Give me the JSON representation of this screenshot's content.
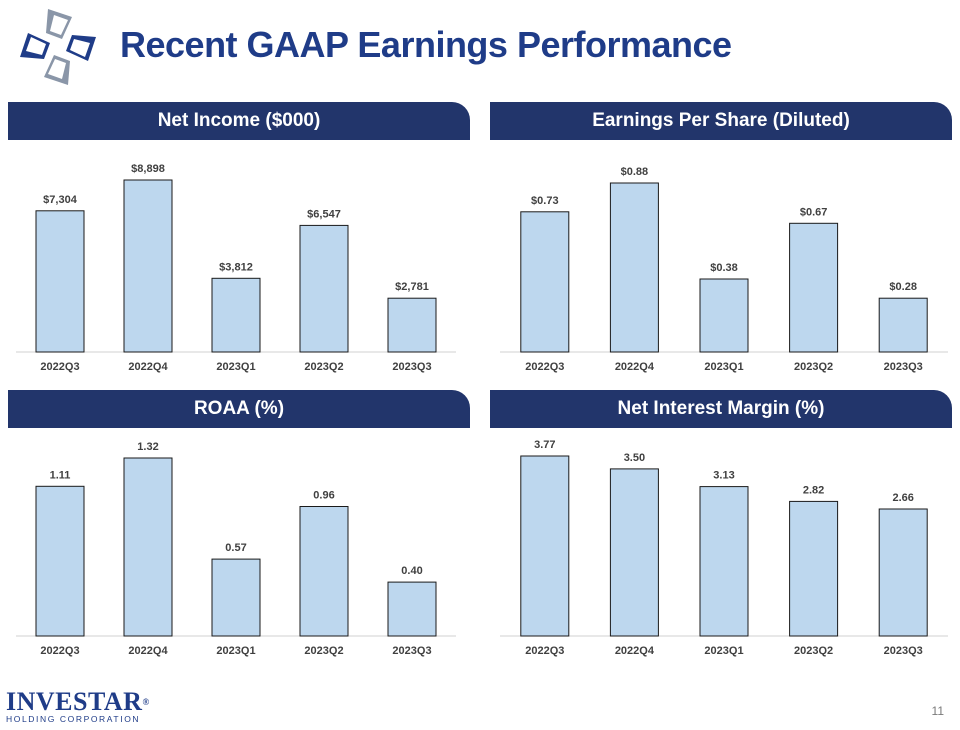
{
  "page": {
    "title": "Recent GAAP Earnings Performance",
    "page_number": "11",
    "brand": {
      "name": "INVESTAR",
      "registered": "®",
      "subtitle": "HOLDING CORPORATION"
    }
  },
  "colors": {
    "title": "#1f3c88",
    "header_bg": "#22356b",
    "bar_fill": "#bdd7ee",
    "bar_stroke": "#1a1a1a"
  },
  "chart_data": [
    {
      "type": "bar",
      "title": "Net Income ($000)",
      "categories": [
        "2022Q3",
        "2022Q4",
        "2023Q1",
        "2023Q2",
        "2023Q3"
      ],
      "values": [
        7304,
        8898,
        3812,
        6547,
        2781
      ],
      "labels": [
        "$7,304",
        "$8,898",
        "$3,812",
        "$6,547",
        "$2,781"
      ],
      "ylim": [
        0,
        10000
      ],
      "grid": false
    },
    {
      "type": "bar",
      "title": "Earnings Per Share (Diluted)",
      "categories": [
        "2022Q3",
        "2022Q4",
        "2023Q1",
        "2023Q2",
        "2023Q3"
      ],
      "values": [
        0.73,
        0.88,
        0.38,
        0.67,
        0.28
      ],
      "labels": [
        "$0.73",
        "$0.88",
        "$0.38",
        "$0.67",
        "$0.28"
      ],
      "ylim": [
        0,
        1.0
      ],
      "grid": false
    },
    {
      "type": "bar",
      "title": "ROAA (%)",
      "categories": [
        "2022Q3",
        "2022Q4",
        "2023Q1",
        "2023Q2",
        "2023Q3"
      ],
      "values": [
        1.11,
        1.32,
        0.57,
        0.96,
        0.4
      ],
      "labels": [
        "1.11",
        "1.32",
        "0.57",
        "0.96",
        "0.40"
      ],
      "ylim": [
        0,
        1.5
      ],
      "grid": false
    },
    {
      "type": "bar",
      "title": "Net Interest Margin (%)",
      "categories": [
        "2022Q3",
        "2022Q4",
        "2023Q1",
        "2023Q2",
        "2023Q3"
      ],
      "values": [
        3.77,
        3.5,
        3.13,
        2.82,
        2.66
      ],
      "labels": [
        "3.77",
        "3.50",
        "3.13",
        "2.82",
        "2.66"
      ],
      "ylim": [
        0,
        3.77
      ],
      "grid": false
    }
  ]
}
